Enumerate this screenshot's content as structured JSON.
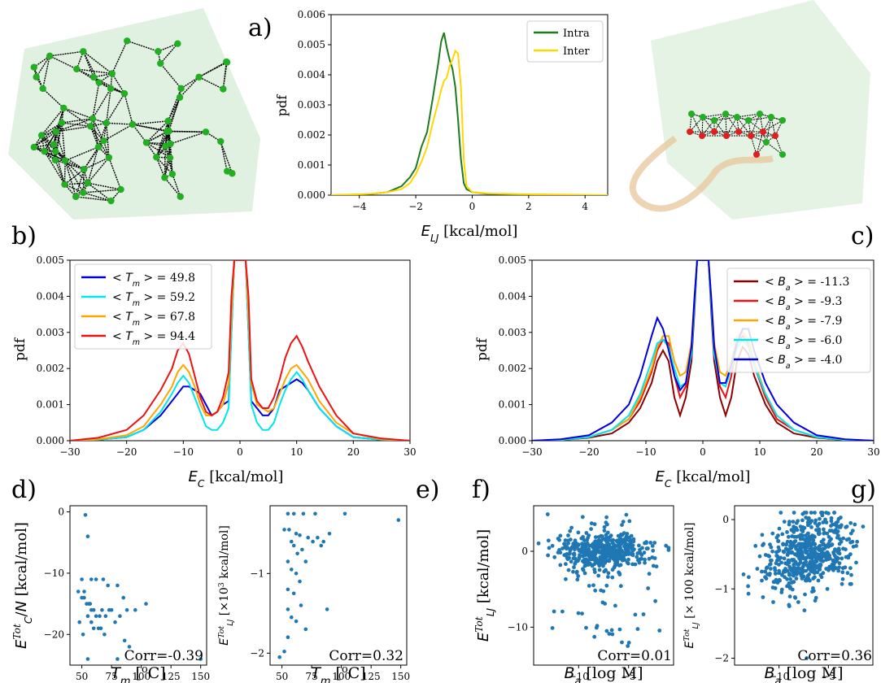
{
  "panel_labels": {
    "a": "a)",
    "b": "b)",
    "c": "c)",
    "d": "d)",
    "e": "e)",
    "f": "f)",
    "g": "g)"
  },
  "colors": {
    "intra": "#1e7a1e",
    "inter": "#ffd700",
    "node_green": "#22b022",
    "node_red": "#e02020",
    "protein_green": "#a8d8a8",
    "protein_tan": "#e8c9a0",
    "scatter": "#1f77b4"
  },
  "chart_data": [
    {
      "id": "a",
      "type": "line",
      "xlabel": "E_LJ [kcal/mol]",
      "ylabel": "pdf",
      "xlim": [
        -5,
        4.8
      ],
      "ylim": [
        0,
        0.006
      ],
      "xticks": [
        -4,
        -2,
        0,
        2,
        4
      ],
      "yticks": [
        "0.000",
        "0.001",
        "0.002",
        "0.003",
        "0.004",
        "0.005",
        "0.006"
      ],
      "legend_position": "top-right",
      "x": [
        -5,
        -4,
        -3.5,
        -3,
        -2.5,
        -2.2,
        -2,
        -1.8,
        -1.6,
        -1.4,
        -1.2,
        -1.1,
        -1,
        -0.9,
        -0.8,
        -0.7,
        -0.6,
        -0.5,
        -0.4,
        -0.3,
        -0.2,
        0,
        0.5,
        1,
        2,
        3,
        4,
        4.8
      ],
      "series": [
        {
          "name": "Intra",
          "color": "#1e7a1e",
          "values": [
            0,
            2e-05,
            5e-05,
            0.0001,
            0.0003,
            0.0006,
            0.0009,
            0.0016,
            0.0021,
            0.0032,
            0.0044,
            0.0051,
            0.0054,
            0.0049,
            0.0045,
            0.0042,
            0.0036,
            0.0025,
            0.0012,
            0.0004,
            0.0002,
            0.0001,
            5e-05,
            4e-05,
            2e-05,
            1e-05,
            0,
            0
          ]
        },
        {
          "name": "Inter",
          "color": "#ffd700",
          "values": [
            0,
            3e-05,
            5e-05,
            0.0001,
            0.0002,
            0.0004,
            0.0007,
            0.0011,
            0.0016,
            0.0024,
            0.0031,
            0.0035,
            0.0038,
            0.0039,
            0.0043,
            0.0045,
            0.0048,
            0.0047,
            0.0036,
            0.0012,
            0.0003,
            0.0001,
            6e-05,
            4e-05,
            3e-05,
            2e-05,
            1e-05,
            0
          ]
        }
      ]
    },
    {
      "id": "b",
      "type": "line",
      "xlabel": "E_C [kcal/mol]",
      "ylabel": "pdf",
      "xlim": [
        -30,
        30
      ],
      "ylim": [
        0,
        0.005
      ],
      "xticks": [
        -30,
        -20,
        -10,
        0,
        10,
        20,
        30
      ],
      "yticks": [
        "0.000",
        "0.001",
        "0.002",
        "0.003",
        "0.004",
        "0.005"
      ],
      "legend_position": "top-left",
      "x": [
        -30,
        -25,
        -20,
        -17,
        -14,
        -12,
        -11,
        -10,
        -9,
        -8,
        -7,
        -6,
        -5,
        -4,
        -3,
        -2,
        -1.5,
        -1,
        1,
        1.5,
        2,
        3,
        4,
        5,
        6,
        7,
        8,
        9,
        10,
        11,
        12,
        14,
        17,
        20,
        25,
        30
      ],
      "series": [
        {
          "name": "<T_m> = 49.8",
          "color": "#0000dd",
          "values": [
            0,
            3e-05,
            0.0001,
            0.0003,
            0.0007,
            0.0011,
            0.0013,
            0.0015,
            0.0015,
            0.0014,
            0.0013,
            0.001,
            0.0007,
            0.0008,
            0.001,
            0.0011,
            0.003,
            0.005,
            0.005,
            0.003,
            0.0011,
            0.0009,
            0.0007,
            0.0007,
            0.0009,
            0.0014,
            0.0015,
            0.0016,
            0.0017,
            0.0016,
            0.0014,
            0.0009,
            0.0004,
            0.0001,
            3e-05,
            0
          ]
        },
        {
          "name": "<T_m> = 59.2",
          "color": "#00e5ee",
          "values": [
            0,
            3e-05,
            0.0001,
            0.0003,
            0.0008,
            0.0013,
            0.0016,
            0.0018,
            0.0016,
            0.0012,
            0.0008,
            0.0004,
            0.0003,
            0.0003,
            0.0005,
            0.0009,
            0.003,
            0.005,
            0.005,
            0.003,
            0.001,
            0.0005,
            0.0003,
            0.0003,
            0.0005,
            0.001,
            0.0014,
            0.0017,
            0.0019,
            0.0017,
            0.0014,
            0.0009,
            0.0004,
            0.0001,
            3e-05,
            0
          ]
        },
        {
          "name": "<T_m> = 67.8",
          "color": "#ffa500",
          "values": [
            0,
            4e-05,
            0.00015,
            0.0004,
            0.001,
            0.0015,
            0.0019,
            0.0021,
            0.0019,
            0.0015,
            0.001,
            0.0007,
            0.0007,
            0.0008,
            0.001,
            0.0016,
            0.0035,
            0.005,
            0.005,
            0.0035,
            0.0016,
            0.001,
            0.0009,
            0.0008,
            0.0009,
            0.0013,
            0.0017,
            0.002,
            0.0021,
            0.0019,
            0.0017,
            0.0011,
            0.0005,
            0.0002,
            4e-05,
            0
          ]
        },
        {
          "name": "<T_m> = 94.4",
          "color": "#ee1111",
          "values": [
            0,
            8e-05,
            0.0003,
            0.0007,
            0.0014,
            0.002,
            0.0025,
            0.0027,
            0.0024,
            0.0018,
            0.0012,
            0.0008,
            0.0007,
            0.0008,
            0.0012,
            0.0019,
            0.004,
            0.005,
            0.005,
            0.004,
            0.0017,
            0.0011,
            0.0009,
            0.0009,
            0.0012,
            0.0017,
            0.0023,
            0.0027,
            0.0029,
            0.0026,
            0.0022,
            0.0015,
            0.0007,
            0.0002,
            6e-05,
            0
          ]
        }
      ]
    },
    {
      "id": "c",
      "type": "line",
      "xlabel": "E_C [kcal/mol]",
      "ylabel": "pdf",
      "xlim": [
        -30,
        30
      ],
      "ylim": [
        0,
        0.005
      ],
      "xticks": [
        -30,
        -20,
        -10,
        0,
        10,
        20,
        30
      ],
      "yticks": [
        "0.000",
        "0.001",
        "0.002",
        "0.003",
        "0.004",
        "0.005"
      ],
      "legend_position": "top-right",
      "x": [
        -30,
        -25,
        -20,
        -16,
        -13,
        -11,
        -9,
        -8,
        -7,
        -6,
        -5,
        -4,
        -3,
        -2,
        -1.5,
        -1,
        1,
        1.5,
        2,
        3,
        4,
        5,
        6,
        7,
        8,
        9,
        11,
        13,
        16,
        20,
        25,
        30
      ],
      "series": [
        {
          "name": "<B_a> = -11.3",
          "color": "#8b0000",
          "values": [
            0,
            2e-05,
            8e-05,
            0.0002,
            0.0005,
            0.0009,
            0.0016,
            0.0022,
            0.0025,
            0.0022,
            0.0012,
            0.0007,
            0.0012,
            0.0022,
            0.0035,
            0.005,
            0.005,
            0.0035,
            0.0022,
            0.0012,
            0.0007,
            0.0012,
            0.0022,
            0.0026,
            0.0024,
            0.0018,
            0.001,
            0.0005,
            0.0002,
            8e-05,
            2e-05,
            0
          ]
        },
        {
          "name": "<B_a> = -9.3",
          "color": "#ee1111",
          "values": [
            0,
            2e-05,
            0.0001,
            0.0003,
            0.0006,
            0.0011,
            0.0019,
            0.0025,
            0.0028,
            0.0027,
            0.0018,
            0.0012,
            0.0015,
            0.0025,
            0.0038,
            0.005,
            0.005,
            0.0038,
            0.0025,
            0.0015,
            0.0012,
            0.0018,
            0.0027,
            0.0029,
            0.0027,
            0.0021,
            0.0012,
            0.0006,
            0.0003,
            0.0001,
            2e-05,
            0
          ]
        },
        {
          "name": "<B_a> = -7.9",
          "color": "#ffa500",
          "values": [
            0,
            2e-05,
            0.0001,
            0.0003,
            0.0006,
            0.0012,
            0.002,
            0.0026,
            0.0029,
            0.0029,
            0.0022,
            0.0018,
            0.0019,
            0.0027,
            0.0039,
            0.005,
            0.005,
            0.0039,
            0.0027,
            0.0019,
            0.0018,
            0.0022,
            0.0029,
            0.003,
            0.0028,
            0.0022,
            0.0013,
            0.0007,
            0.0003,
            0.0001,
            2e-05,
            0
          ]
        },
        {
          "name": "<B_a> = -6.0",
          "color": "#00e5ee",
          "values": [
            0,
            2e-05,
            0.0001,
            0.0003,
            0.0007,
            0.0013,
            0.0022,
            0.0027,
            0.0028,
            0.0026,
            0.002,
            0.0015,
            0.0016,
            0.0024,
            0.0037,
            0.005,
            0.005,
            0.0037,
            0.0024,
            0.0016,
            0.0015,
            0.002,
            0.0026,
            0.0028,
            0.0026,
            0.0021,
            0.0013,
            0.0007,
            0.0003,
            0.0001,
            2e-05,
            0
          ]
        },
        {
          "name": "<B_a> = -4.0",
          "color": "#0000dd",
          "values": [
            0,
            4e-05,
            0.00015,
            0.0005,
            0.001,
            0.0018,
            0.0029,
            0.0034,
            0.0031,
            0.0025,
            0.0018,
            0.0014,
            0.0016,
            0.0026,
            0.0039,
            0.005,
            0.005,
            0.0039,
            0.0026,
            0.0016,
            0.0016,
            0.0021,
            0.0027,
            0.0031,
            0.0031,
            0.0025,
            0.0016,
            0.001,
            0.0005,
            0.00015,
            4e-05,
            0
          ]
        }
      ]
    },
    {
      "id": "d",
      "type": "scatter",
      "xlabel": "T_m [°C]",
      "ylabel": "E_C^Tot/N [kcal/mol]",
      "annotation": "Corr=-0.39",
      "xlim": [
        40,
        155
      ],
      "ylim": [
        -25,
        1
      ],
      "xticks": [
        50,
        75,
        100,
        125,
        150
      ],
      "yticks": [
        0,
        -10,
        -20
      ],
      "points": [
        [
          53,
          -0.5
        ],
        [
          55,
          -4
        ],
        [
          50,
          -11
        ],
        [
          47,
          -13
        ],
        [
          52,
          -13
        ],
        [
          58,
          -11
        ],
        [
          62,
          -11
        ],
        [
          68,
          -11
        ],
        [
          72,
          -12
        ],
        [
          80,
          -12
        ],
        [
          85,
          -14
        ],
        [
          50,
          -14
        ],
        [
          52,
          -14
        ],
        [
          54,
          -15
        ],
        [
          56,
          -15
        ],
        [
          57,
          -15
        ],
        [
          58,
          -16
        ],
        [
          60,
          -16
        ],
        [
          62,
          -17
        ],
        [
          65,
          -17
        ],
        [
          67,
          -16
        ],
        [
          70,
          -17
        ],
        [
          73,
          -16
        ],
        [
          55,
          -17
        ],
        [
          58,
          -18
        ],
        [
          60,
          -19
        ],
        [
          64,
          -19
        ],
        [
          66,
          -19
        ],
        [
          69,
          -20
        ],
        [
          75,
          -16
        ],
        [
          78,
          -18
        ],
        [
          82,
          -17
        ],
        [
          88,
          -16
        ],
        [
          95,
          -16
        ],
        [
          104,
          -15
        ],
        [
          86,
          -21
        ],
        [
          90,
          -22
        ],
        [
          80,
          -24
        ],
        [
          55,
          -24
        ],
        [
          48,
          -18
        ],
        [
          51,
          -20
        ],
        [
          150,
          -24
        ]
      ]
    },
    {
      "id": "e",
      "type": "scatter",
      "xlabel": "T_m [°C]",
      "ylabel": "E_LJ^Tot [×10^3 kcal/mol]",
      "annotation": "Corr=0.32",
      "xlim": [
        40,
        155
      ],
      "ylim": [
        -2.15,
        -0.15
      ],
      "xticks": [
        50,
        75,
        100,
        125,
        150
      ],
      "yticks": [
        -1,
        -2
      ],
      "points": [
        [
          55,
          -0.25
        ],
        [
          60,
          -0.25
        ],
        [
          68,
          -0.25
        ],
        [
          78,
          -0.25
        ],
        [
          103,
          -0.25
        ],
        [
          148,
          -0.33
        ],
        [
          52,
          -0.45
        ],
        [
          56,
          -0.45
        ],
        [
          62,
          -0.5
        ],
        [
          65,
          -0.52
        ],
        [
          72,
          -0.55
        ],
        [
          80,
          -0.55
        ],
        [
          85,
          -0.6
        ],
        [
          90,
          -0.5
        ],
        [
          58,
          -0.6
        ],
        [
          60,
          -0.65
        ],
        [
          63,
          -0.75
        ],
        [
          67,
          -0.7
        ],
        [
          70,
          -0.85
        ],
        [
          55,
          -0.85
        ],
        [
          58,
          -0.95
        ],
        [
          62,
          -1.0
        ],
        [
          65,
          -1.1
        ],
        [
          55,
          -1.2
        ],
        [
          60,
          -1.25
        ],
        [
          66,
          -1.4
        ],
        [
          88,
          -1.45
        ],
        [
          55,
          -1.45
        ],
        [
          58,
          -1.55
        ],
        [
          62,
          -1.6
        ],
        [
          70,
          -1.7
        ],
        [
          55,
          -1.8
        ],
        [
          48,
          -2.05
        ],
        [
          52,
          -1.98
        ],
        [
          76,
          -0.6
        ],
        [
          83,
          -0.65
        ]
      ]
    },
    {
      "id": "f",
      "type": "scatter",
      "xlabel": "B_a [log M]",
      "ylabel": "E_LJ^Tot [kcal/mol]",
      "annotation": "Corr=0.01",
      "xlim": [
        -14.5,
        -0.5
      ],
      "ylim": [
        -15,
        6
      ],
      "xticks": [
        -10,
        -5
      ],
      "yticks": [
        0,
        -10
      ],
      "points": []
    },
    {
      "id": "g",
      "type": "scatter",
      "xlabel": "B_a [log M]",
      "ylabel": "E_LJ^Tot [× 100 kcal/mol]",
      "annotation": "Corr=0.36",
      "xlim": [
        -14.5,
        -0.5
      ],
      "ylim": [
        -2.1,
        0.2
      ],
      "xticks": [
        -10,
        -5
      ],
      "yticks": [
        0,
        -1,
        -2
      ],
      "points": []
    }
  ]
}
